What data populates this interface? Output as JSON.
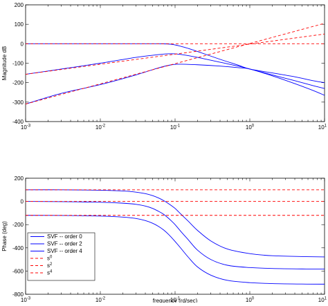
{
  "chart_data": [
    {
      "type": "line",
      "title": "",
      "xlabel": "",
      "ylabel": "Magnitude dB",
      "xscale": "log",
      "xlim": [
        0.001,
        10
      ],
      "ylim": [
        -400,
        200
      ],
      "x_ticks": [
        0.001,
        0.01,
        0.1,
        1,
        10
      ],
      "x_tick_labels": [
        {
          "base": "10",
          "exp": "-3"
        },
        {
          "base": "10",
          "exp": "-2"
        },
        {
          "base": "10",
          "exp": "-1"
        },
        {
          "base": "10",
          "exp": "0"
        },
        {
          "base": "10",
          "exp": "1"
        }
      ],
      "y_ticks": [
        -400,
        -300,
        -200,
        -100,
        0,
        100,
        200
      ],
      "y_tick_labels": [
        "-400",
        "-300",
        "-200",
        "-100",
        "0",
        "100",
        "200"
      ],
      "grid": false,
      "series": [
        {
          "name": "SVF -- order 0",
          "color": "#0000ff",
          "style": "solid",
          "x": [
            0.001,
            0.003,
            0.01,
            0.03,
            0.06,
            0.09,
            0.13,
            0.2,
            0.4,
            0.7,
            1.0,
            2,
            4,
            7,
            10
          ],
          "y": [
            0,
            0,
            0,
            0,
            0,
            -3,
            -17,
            -40,
            -80,
            -110,
            -130,
            -150,
            -170,
            -190,
            -200
          ]
        },
        {
          "name": "SVF -- order 2",
          "color": "#0000ff",
          "style": "solid",
          "x": [
            0.001,
            0.003,
            0.01,
            0.03,
            0.06,
            0.08,
            0.1,
            0.13,
            0.2,
            0.4,
            0.7,
            1.0,
            2,
            4,
            7,
            10
          ],
          "y": [
            -157,
            -130,
            -100,
            -70,
            -56,
            -52,
            -52,
            -57,
            -70,
            -95,
            -115,
            -130,
            -160,
            -190,
            -215,
            -230
          ]
        },
        {
          "name": "SVF -- order 4",
          "color": "#0000ff",
          "style": "solid",
          "x": [
            0.001,
            0.003,
            0.01,
            0.03,
            0.06,
            0.09,
            0.12,
            0.2,
            0.4,
            0.7,
            1.0,
            2,
            4,
            7,
            10
          ],
          "y": [
            -310,
            -255,
            -210,
            -160,
            -124,
            -108,
            -105,
            -108,
            -115,
            -123,
            -130,
            -165,
            -205,
            -240,
            -265
          ]
        },
        {
          "name": "s⁰",
          "color": "#ff0000",
          "style": "dashed",
          "x": [
            0.001,
            10
          ],
          "y": [
            0,
            0
          ]
        },
        {
          "name": "s²",
          "color": "#ff0000",
          "style": "dashed",
          "x": [
            0.001,
            10
          ],
          "y": [
            -157,
            50
          ]
        },
        {
          "name": "s⁴",
          "color": "#ff0000",
          "style": "dashed",
          "x": [
            0.001,
            10
          ],
          "y": [
            -310,
            105
          ]
        }
      ]
    },
    {
      "type": "line",
      "title": "",
      "xlabel": "frequency (rd/sec)",
      "ylabel": "Phase (deg)",
      "xscale": "log",
      "xlim": [
        0.001,
        10
      ],
      "ylim": [
        -800,
        200
      ],
      "x_ticks": [
        0.001,
        0.01,
        0.1,
        1,
        10
      ],
      "x_tick_labels": [
        {
          "base": "10",
          "exp": "-3"
        },
        {
          "base": "10",
          "exp": "-2"
        },
        {
          "base": "10",
          "exp": "-1"
        },
        {
          "base": "10",
          "exp": "0"
        },
        {
          "base": "10",
          "exp": "1"
        }
      ],
      "y_ticks": [
        -800,
        -600,
        -400,
        -200,
        0,
        200
      ],
      "y_tick_labels": [
        "-800",
        "-600",
        "-400",
        "-200",
        "0",
        "200"
      ],
      "grid": false,
      "legend": {
        "placement": "bottom-left",
        "entries": [
          {
            "label": "SVF -- order 0",
            "color": "#0000ff",
            "style": "solid"
          },
          {
            "label": "SVF -- order 2",
            "color": "#0000ff",
            "style": "solid"
          },
          {
            "label": "SVF -- order 4",
            "color": "#0000ff",
            "style": "solid"
          },
          {
            "label": "s",
            "sup": "0",
            "color": "#ff0000",
            "style": "dashed"
          },
          {
            "label": "s",
            "sup": "2",
            "color": "#ff0000",
            "style": "dashed"
          },
          {
            "label": "s",
            "sup": "4",
            "color": "#ff0000",
            "style": "dashed"
          }
        ]
      },
      "series": [
        {
          "name": "SVF -- order 0",
          "color": "#0000ff",
          "style": "solid",
          "x": [
            0.001,
            0.003,
            0.01,
            0.02,
            0.03,
            0.04,
            0.05,
            0.06,
            0.07,
            0.08,
            0.09,
            0.1,
            0.12,
            0.15,
            0.2,
            0.3,
            0.5,
            1,
            2,
            5,
            10
          ],
          "y": [
            100,
            100,
            96,
            90,
            80,
            67,
            50,
            30,
            8,
            -15,
            -38,
            -60,
            -110,
            -170,
            -250,
            -340,
            -410,
            -450,
            -468,
            -475,
            -478
          ]
        },
        {
          "name": "SVF -- order 2",
          "color": "#0000ff",
          "style": "solid",
          "x": [
            0.001,
            0.003,
            0.01,
            0.02,
            0.03,
            0.04,
            0.05,
            0.06,
            0.07,
            0.08,
            0.09,
            0.1,
            0.12,
            0.15,
            0.2,
            0.3,
            0.5,
            1,
            2,
            5,
            10
          ],
          "y": [
            0,
            -2,
            -7,
            -15,
            -25,
            -40,
            -60,
            -85,
            -110,
            -140,
            -170,
            -200,
            -260,
            -330,
            -420,
            -500,
            -550,
            -570,
            -578,
            -582,
            -583
          ]
        },
        {
          "name": "SVF -- order 4",
          "color": "#0000ff",
          "style": "solid",
          "x": [
            0.001,
            0.003,
            0.01,
            0.02,
            0.03,
            0.04,
            0.05,
            0.06,
            0.07,
            0.08,
            0.09,
            0.1,
            0.12,
            0.15,
            0.2,
            0.3,
            0.5,
            1,
            2,
            5,
            10
          ],
          "y": [
            -120,
            -121,
            -126,
            -135,
            -147,
            -165,
            -188,
            -215,
            -245,
            -278,
            -312,
            -345,
            -405,
            -480,
            -565,
            -635,
            -680,
            -700,
            -708,
            -712,
            -713
          ]
        },
        {
          "name": "s⁰",
          "color": "#ff0000",
          "style": "dashed",
          "x": [
            0.001,
            10
          ],
          "y": [
            100,
            100
          ]
        },
        {
          "name": "s²",
          "color": "#ff0000",
          "style": "dashed",
          "x": [
            0.001,
            10
          ],
          "y": [
            0,
            0
          ]
        },
        {
          "name": "s⁴",
          "color": "#ff0000",
          "style": "dashed",
          "x": [
            0.001,
            10
          ],
          "y": [
            -120,
            -120
          ]
        }
      ]
    }
  ]
}
